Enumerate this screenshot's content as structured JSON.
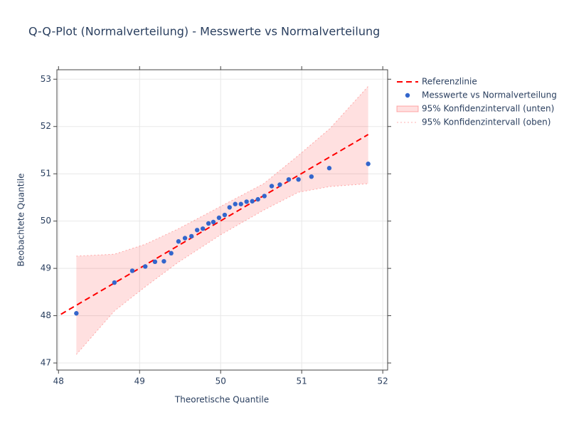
{
  "chart_data": {
    "type": "qq",
    "title": "Q-Q-Plot (Normalverteilung) - Messwerte vs Normalverteilung",
    "x_label": "Theoretische Quantile",
    "y_label": "Beobachtete Quantile",
    "xlim": [
      47.98,
      52.06
    ],
    "ylim": [
      46.85,
      53.2
    ],
    "xticks": [
      48,
      49,
      50,
      51,
      52
    ],
    "yticks": [
      47,
      48,
      49,
      50,
      51,
      52,
      53
    ],
    "grid": true,
    "legend": "right",
    "series": [
      {
        "name": "Referenzlinie",
        "mode": "lines",
        "dash": "dash",
        "color": "#ff0000",
        "x": [
          48.03,
          51.82
        ],
        "y": [
          48.03,
          51.83
        ]
      },
      {
        "name": "Messwerte vs Normalverteilung",
        "mode": "markers",
        "color": "#3366cc",
        "x": [
          48.22,
          48.69,
          48.91,
          49.07,
          49.19,
          49.3,
          49.39,
          49.48,
          49.56,
          49.64,
          49.71,
          49.78,
          49.85,
          49.91,
          49.98,
          50.05,
          50.11,
          50.18,
          50.25,
          50.32,
          50.39,
          50.46,
          50.54,
          50.63,
          50.73,
          50.84,
          50.96,
          51.12,
          51.34,
          51.82
        ],
        "y": [
          48.05,
          48.7,
          48.95,
          49.04,
          49.14,
          49.15,
          49.32,
          49.57,
          49.64,
          49.68,
          49.81,
          49.84,
          49.95,
          49.98,
          50.07,
          50.13,
          50.29,
          50.36,
          50.36,
          50.41,
          50.42,
          50.46,
          50.53,
          50.74,
          50.77,
          50.88,
          50.88,
          50.94,
          51.12,
          51.21
        ]
      },
      {
        "name": "95% Konfidenzintervall (unten)",
        "mode": "lines",
        "dash": "dot",
        "fill": true,
        "color": "rgba(255,0,0,0.3)",
        "fillcolor": "rgba(255,0,0,0.12)",
        "x": [
          48.22,
          48.69,
          49.07,
          49.47,
          50.0,
          50.53,
          50.96,
          51.35,
          51.82
        ],
        "y": [
          47.18,
          48.1,
          48.61,
          49.12,
          49.71,
          50.23,
          50.61,
          50.73,
          50.79
        ]
      },
      {
        "name": "95% Konfidenzintervall (oben)",
        "mode": "lines",
        "dash": "dot",
        "color": "rgba(255,0,0,0.3)",
        "x": [
          48.22,
          48.69,
          49.07,
          49.47,
          50.0,
          50.53,
          50.96,
          51.35,
          51.82
        ],
        "y": [
          49.26,
          49.3,
          49.51,
          49.83,
          50.31,
          50.79,
          51.39,
          51.96,
          52.85
        ]
      }
    ]
  }
}
